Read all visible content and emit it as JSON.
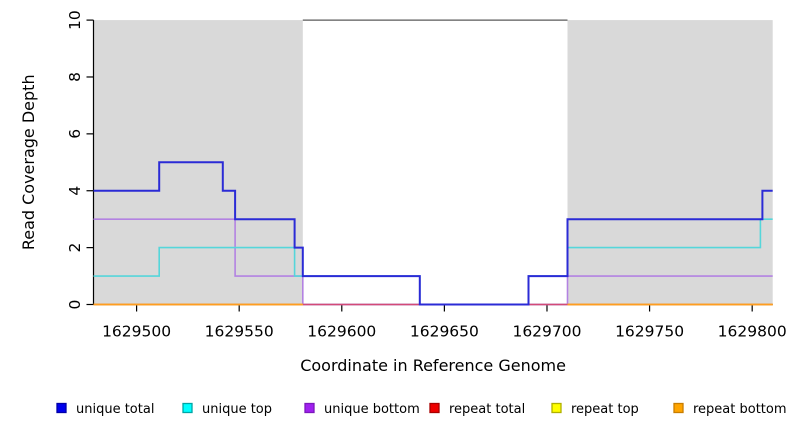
{
  "figure": {
    "background": "#ffffff",
    "axis_color": "#000000",
    "tick_label_color": "#000000"
  },
  "chart_data": {
    "type": "line",
    "line_style": "step-post",
    "title": "",
    "xlabel": "Coordinate in Reference Genome",
    "ylabel": "Read Coverage Depth",
    "xlim": [
      1629479,
      1629810
    ],
    "ylim": [
      0,
      10
    ],
    "x_ticks": [
      1629500,
      1629550,
      1629600,
      1629650,
      1629700,
      1629750,
      1629800
    ],
    "y_ticks": [
      0,
      2,
      4,
      6,
      8,
      10
    ],
    "grid": false,
    "legend_position": "bottom",
    "plot_box_top_border": {
      "x0": 1629581,
      "x1": 1629710,
      "color": "#5a5a5a"
    },
    "highlight_regions": {
      "color": "#d9d9d9",
      "regions": [
        {
          "x0": 1629479,
          "x1": 1629581
        },
        {
          "x0": 1629710,
          "x1": 1629810
        }
      ]
    },
    "series": [
      {
        "name": "unique total",
        "line_color": "#2b2bd6",
        "legend_fill": "#0000ee",
        "legend_border": "#0000a8",
        "line_width": 2,
        "segments": [
          [
            [
              1629479,
              4
            ],
            [
              1629511,
              5
            ],
            [
              1629542,
              4
            ],
            [
              1629548,
              3
            ],
            [
              1629577,
              2
            ],
            [
              1629581,
              1
            ],
            [
              1629638,
              0
            ],
            [
              1629691,
              1
            ],
            [
              1629710,
              3
            ],
            [
              1629805,
              4
            ],
            [
              1629810,
              4
            ]
          ]
        ]
      },
      {
        "name": "unique top",
        "line_color": "#55d6da",
        "legend_fill": "#00ffff",
        "legend_border": "#00a5a5",
        "line_width": 1.6,
        "segments": [
          [
            [
              1629479,
              1
            ],
            [
              1629511,
              2
            ],
            [
              1629577,
              1
            ],
            [
              1629638,
              0
            ],
            [
              1629691,
              1
            ],
            [
              1629710,
              2
            ],
            [
              1629804,
              3
            ],
            [
              1629810,
              3
            ]
          ]
        ]
      },
      {
        "name": "unique bottom",
        "line_color": "#b382e2",
        "legend_fill": "#a020f0",
        "legend_border": "#7c18bc",
        "line_width": 1.6,
        "segments": [
          [
            [
              1629479,
              3
            ],
            [
              1629548,
              1
            ],
            [
              1629581,
              0
            ],
            [
              1629710,
              1
            ],
            [
              1629810,
              1
            ]
          ]
        ]
      },
      {
        "name": "repeat total",
        "line_color": "#d44a78",
        "legend_fill": "#ee0000",
        "legend_border": "#a80000",
        "line_width": 1.6,
        "segments": [
          [
            [
              1629479,
              0
            ],
            [
              1629810,
              0
            ]
          ]
        ]
      },
      {
        "name": "repeat top",
        "line_color": "#f0e442",
        "legend_fill": "#ffff00",
        "legend_border": "#b0b000",
        "line_width": 1.6,
        "segments": [
          [
            [
              1629479,
              0
            ],
            [
              1629581,
              0
            ]
          ],
          [
            [
              1629710,
              0
            ],
            [
              1629810,
              0
            ]
          ]
        ]
      },
      {
        "name": "repeat bottom",
        "line_color": "#ff9d20",
        "legend_fill": "#ffa500",
        "legend_border": "#c87d00",
        "line_width": 1.8,
        "segments": [
          [
            [
              1629479,
              0
            ],
            [
              1629581,
              0
            ]
          ],
          [
            [
              1629710,
              0
            ],
            [
              1629810,
              0
            ]
          ]
        ]
      }
    ],
    "draw_order": [
      2,
      1,
      3,
      4,
      5,
      0
    ]
  }
}
